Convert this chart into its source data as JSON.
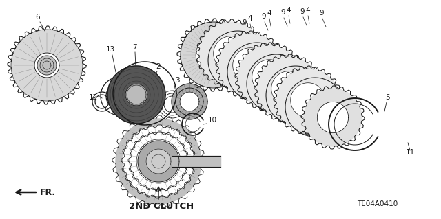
{
  "title": "2ND CLUTCH",
  "part_code": "TE04A0410",
  "fr_label": "FR.",
  "background_color": "#ffffff",
  "line_color": "#1a1a1a",
  "fig_width": 6.4,
  "fig_height": 3.19,
  "dpi": 100,
  "label_fontsize": 7.5,
  "title_fontsize": 9.5
}
